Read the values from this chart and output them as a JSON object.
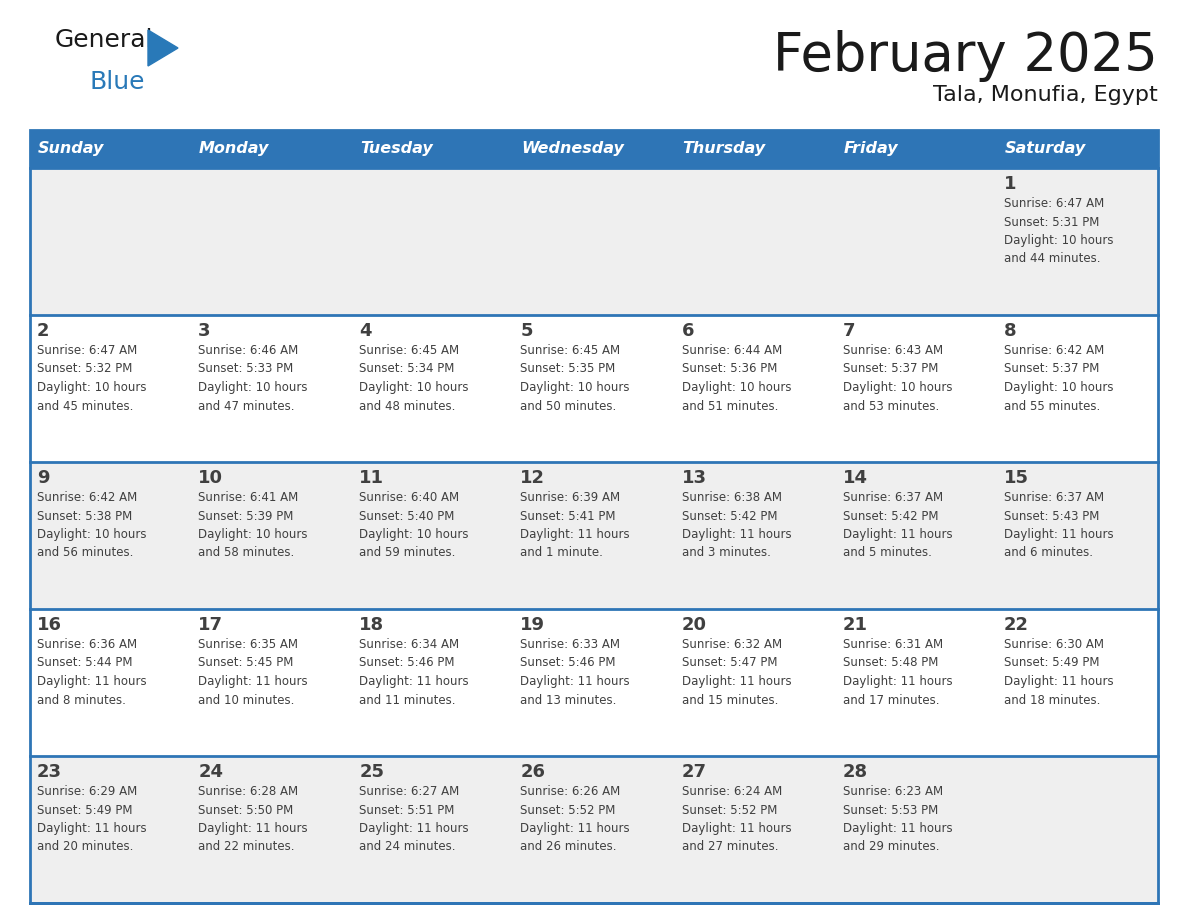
{
  "title": "February 2025",
  "subtitle": "Tala, Monufia, Egypt",
  "header_color": "#2E75B6",
  "header_text_color": "#FFFFFF",
  "days_of_week": [
    "Sunday",
    "Monday",
    "Tuesday",
    "Wednesday",
    "Thursday",
    "Friday",
    "Saturday"
  ],
  "bg_color": "#FFFFFF",
  "cell_bg_gray": "#EFEFEF",
  "cell_bg_white": "#FFFFFF",
  "row_line_color": "#2E75B6",
  "text_color": "#404040",
  "title_color": "#1a1a1a",
  "logo_black": "#1a1a1a",
  "logo_blue": "#2979B8",
  "triangle_color": "#2979B8",
  "calendar_data": [
    [
      {
        "day": "",
        "info": ""
      },
      {
        "day": "",
        "info": ""
      },
      {
        "day": "",
        "info": ""
      },
      {
        "day": "",
        "info": ""
      },
      {
        "day": "",
        "info": ""
      },
      {
        "day": "",
        "info": ""
      },
      {
        "day": "1",
        "info": "Sunrise: 6:47 AM\nSunset: 5:31 PM\nDaylight: 10 hours\nand 44 minutes."
      }
    ],
    [
      {
        "day": "2",
        "info": "Sunrise: 6:47 AM\nSunset: 5:32 PM\nDaylight: 10 hours\nand 45 minutes."
      },
      {
        "day": "3",
        "info": "Sunrise: 6:46 AM\nSunset: 5:33 PM\nDaylight: 10 hours\nand 47 minutes."
      },
      {
        "day": "4",
        "info": "Sunrise: 6:45 AM\nSunset: 5:34 PM\nDaylight: 10 hours\nand 48 minutes."
      },
      {
        "day": "5",
        "info": "Sunrise: 6:45 AM\nSunset: 5:35 PM\nDaylight: 10 hours\nand 50 minutes."
      },
      {
        "day": "6",
        "info": "Sunrise: 6:44 AM\nSunset: 5:36 PM\nDaylight: 10 hours\nand 51 minutes."
      },
      {
        "day": "7",
        "info": "Sunrise: 6:43 AM\nSunset: 5:37 PM\nDaylight: 10 hours\nand 53 minutes."
      },
      {
        "day": "8",
        "info": "Sunrise: 6:42 AM\nSunset: 5:37 PM\nDaylight: 10 hours\nand 55 minutes."
      }
    ],
    [
      {
        "day": "9",
        "info": "Sunrise: 6:42 AM\nSunset: 5:38 PM\nDaylight: 10 hours\nand 56 minutes."
      },
      {
        "day": "10",
        "info": "Sunrise: 6:41 AM\nSunset: 5:39 PM\nDaylight: 10 hours\nand 58 minutes."
      },
      {
        "day": "11",
        "info": "Sunrise: 6:40 AM\nSunset: 5:40 PM\nDaylight: 10 hours\nand 59 minutes."
      },
      {
        "day": "12",
        "info": "Sunrise: 6:39 AM\nSunset: 5:41 PM\nDaylight: 11 hours\nand 1 minute."
      },
      {
        "day": "13",
        "info": "Sunrise: 6:38 AM\nSunset: 5:42 PM\nDaylight: 11 hours\nand 3 minutes."
      },
      {
        "day": "14",
        "info": "Sunrise: 6:37 AM\nSunset: 5:42 PM\nDaylight: 11 hours\nand 5 minutes."
      },
      {
        "day": "15",
        "info": "Sunrise: 6:37 AM\nSunset: 5:43 PM\nDaylight: 11 hours\nand 6 minutes."
      }
    ],
    [
      {
        "day": "16",
        "info": "Sunrise: 6:36 AM\nSunset: 5:44 PM\nDaylight: 11 hours\nand 8 minutes."
      },
      {
        "day": "17",
        "info": "Sunrise: 6:35 AM\nSunset: 5:45 PM\nDaylight: 11 hours\nand 10 minutes."
      },
      {
        "day": "18",
        "info": "Sunrise: 6:34 AM\nSunset: 5:46 PM\nDaylight: 11 hours\nand 11 minutes."
      },
      {
        "day": "19",
        "info": "Sunrise: 6:33 AM\nSunset: 5:46 PM\nDaylight: 11 hours\nand 13 minutes."
      },
      {
        "day": "20",
        "info": "Sunrise: 6:32 AM\nSunset: 5:47 PM\nDaylight: 11 hours\nand 15 minutes."
      },
      {
        "day": "21",
        "info": "Sunrise: 6:31 AM\nSunset: 5:48 PM\nDaylight: 11 hours\nand 17 minutes."
      },
      {
        "day": "22",
        "info": "Sunrise: 6:30 AM\nSunset: 5:49 PM\nDaylight: 11 hours\nand 18 minutes."
      }
    ],
    [
      {
        "day": "23",
        "info": "Sunrise: 6:29 AM\nSunset: 5:49 PM\nDaylight: 11 hours\nand 20 minutes."
      },
      {
        "day": "24",
        "info": "Sunrise: 6:28 AM\nSunset: 5:50 PM\nDaylight: 11 hours\nand 22 minutes."
      },
      {
        "day": "25",
        "info": "Sunrise: 6:27 AM\nSunset: 5:51 PM\nDaylight: 11 hours\nand 24 minutes."
      },
      {
        "day": "26",
        "info": "Sunrise: 6:26 AM\nSunset: 5:52 PM\nDaylight: 11 hours\nand 26 minutes."
      },
      {
        "day": "27",
        "info": "Sunrise: 6:24 AM\nSunset: 5:52 PM\nDaylight: 11 hours\nand 27 minutes."
      },
      {
        "day": "28",
        "info": "Sunrise: 6:23 AM\nSunset: 5:53 PM\nDaylight: 11 hours\nand 29 minutes."
      },
      {
        "day": "",
        "info": ""
      }
    ]
  ]
}
